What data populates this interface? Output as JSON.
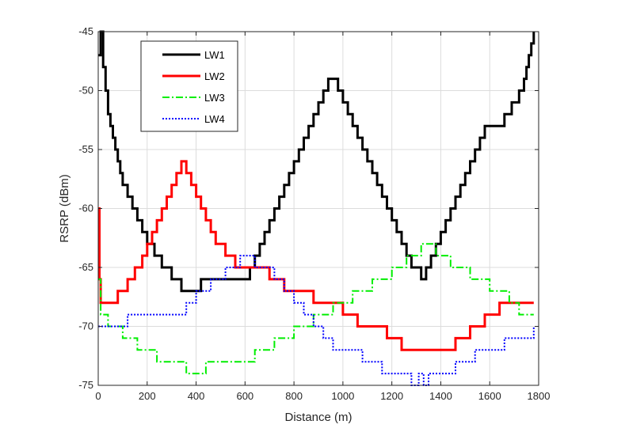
{
  "chart_data": {
    "type": "line",
    "xlabel": "Distance (m)",
    "ylabel": "RSRP (dBm)",
    "xlim": [
      0,
      1800
    ],
    "ylim": [
      -75,
      -45
    ],
    "xticks": [
      0,
      200,
      400,
      600,
      800,
      1000,
      1200,
      1400,
      1600,
      1800
    ],
    "yticks": [
      -75,
      -70,
      -65,
      -60,
      -55,
      -50,
      -45
    ],
    "grid": true,
    "legend_position": "top-left",
    "series": [
      {
        "name": "LW1",
        "color": "#000000",
        "style": "solid",
        "x": [
          0,
          10,
          20,
          30,
          40,
          50,
          60,
          70,
          80,
          90,
          100,
          120,
          140,
          160,
          180,
          200,
          230,
          260,
          300,
          340,
          380,
          420,
          480,
          540,
          600,
          620,
          640,
          660,
          680,
          700,
          720,
          740,
          760,
          780,
          800,
          820,
          840,
          860,
          880,
          900,
          920,
          940,
          960,
          980,
          1000,
          1020,
          1040,
          1060,
          1080,
          1100,
          1120,
          1140,
          1160,
          1180,
          1200,
          1220,
          1240,
          1260,
          1280,
          1300,
          1320,
          1340,
          1360,
          1380,
          1400,
          1420,
          1440,
          1460,
          1480,
          1500,
          1520,
          1540,
          1560,
          1580,
          1600,
          1620,
          1640,
          1660,
          1690,
          1720,
          1740,
          1750,
          1760,
          1770,
          1780
        ],
        "y": [
          -47,
          -45,
          -48,
          -50,
          -52,
          -53,
          -54,
          -55,
          -56,
          -57,
          -58,
          -59,
          -60,
          -61,
          -62,
          -63,
          -64,
          -65,
          -66,
          -67,
          -67,
          -66,
          -66,
          -66,
          -66,
          -65,
          -64,
          -63,
          -62,
          -61,
          -60,
          -59,
          -58,
          -57,
          -56,
          -55,
          -54,
          -53,
          -52,
          -51,
          -50,
          -49,
          -49,
          -50,
          -51,
          -52,
          -53,
          -54,
          -55,
          -56,
          -57,
          -58,
          -59,
          -60,
          -61,
          -62,
          -63,
          -64,
          -65,
          -65,
          -66,
          -65,
          -64,
          -63,
          -62,
          -61,
          -60,
          -59,
          -58,
          -57,
          -56,
          -55,
          -54,
          -53,
          -53,
          -53,
          -53,
          -52,
          -51,
          -50,
          -49,
          -48,
          -47,
          -46,
          -45
        ]
      },
      {
        "name": "LW2",
        "color": "#ff0000",
        "style": "solid",
        "x": [
          0,
          5,
          10,
          40,
          80,
          120,
          150,
          180,
          200,
          220,
          240,
          260,
          280,
          300,
          320,
          340,
          360,
          380,
          400,
          420,
          440,
          460,
          480,
          500,
          520,
          540,
          560,
          580,
          600,
          640,
          700,
          760,
          820,
          880,
          940,
          1000,
          1060,
          1120,
          1180,
          1240,
          1300,
          1360,
          1400,
          1460,
          1520,
          1580,
          1640,
          1700,
          1780
        ],
        "y": [
          -60,
          -66,
          -68,
          -68,
          -67,
          -66,
          -65,
          -64,
          -63,
          -62,
          -61,
          -60,
          -59,
          -58,
          -57,
          -56,
          -57,
          -58,
          -59,
          -60,
          -61,
          -62,
          -63,
          -63,
          -64,
          -64,
          -65,
          -65,
          -65,
          -65,
          -66,
          -67,
          -67,
          -68,
          -68,
          -69,
          -70,
          -70,
          -71,
          -72,
          -72,
          -72,
          -72,
          -71,
          -70,
          -69,
          -68,
          -68,
          -68
        ]
      },
      {
        "name": "LW3",
        "color": "#00ee00",
        "style": "dashdot",
        "x": [
          0,
          10,
          40,
          100,
          160,
          200,
          240,
          280,
          320,
          360,
          400,
          440,
          480,
          520,
          560,
          600,
          640,
          680,
          720,
          760,
          800,
          840,
          880,
          920,
          960,
          1000,
          1040,
          1080,
          1120,
          1160,
          1200,
          1240,
          1260,
          1280,
          1300,
          1320,
          1340,
          1360,
          1380,
          1400,
          1420,
          1440,
          1480,
          1520,
          1560,
          1600,
          1640,
          1680,
          1720,
          1780
        ],
        "y": [
          -66,
          -69,
          -70,
          -71,
          -72,
          -72,
          -73,
          -73,
          -73,
          -74,
          -74,
          -73,
          -73,
          -73,
          -73,
          -73,
          -72,
          -72,
          -71,
          -71,
          -70,
          -70,
          -69,
          -69,
          -68,
          -68,
          -67,
          -67,
          -66,
          -66,
          -65,
          -65,
          -64,
          -64,
          -64,
          -63,
          -63,
          -63,
          -64,
          -64,
          -64,
          -65,
          -65,
          -66,
          -66,
          -67,
          -67,
          -68,
          -69,
          -69
        ]
      },
      {
        "name": "LW4",
        "color": "#0000ff",
        "style": "dotted",
        "x": [
          0,
          30,
          80,
          120,
          160,
          200,
          240,
          280,
          320,
          360,
          400,
          430,
          460,
          490,
          520,
          550,
          580,
          610,
          640,
          680,
          720,
          760,
          800,
          840,
          880,
          920,
          960,
          1000,
          1040,
          1080,
          1120,
          1160,
          1200,
          1240,
          1280,
          1310,
          1330,
          1350,
          1380,
          1420,
          1460,
          1500,
          1540,
          1580,
          1620,
          1660,
          1700,
          1740,
          1780
        ],
        "y": [
          -70,
          -70,
          -70,
          -69,
          -69,
          -69,
          -69,
          -69,
          -69,
          -68,
          -67,
          -67,
          -66,
          -66,
          -65,
          -65,
          -64,
          -64,
          -65,
          -65,
          -66,
          -67,
          -68,
          -69,
          -70,
          -71,
          -72,
          -72,
          -72,
          -73,
          -73,
          -74,
          -74,
          -74,
          -75,
          -74,
          -75,
          -74,
          -74,
          -74,
          -73,
          -73,
          -72,
          -72,
          -72,
          -71,
          -71,
          -71,
          -70
        ]
      }
    ]
  }
}
